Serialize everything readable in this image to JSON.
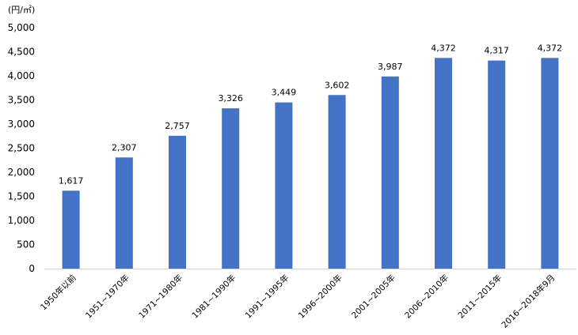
{
  "chart_data": {
    "type": "bar",
    "unit_label": "(円/㎡)",
    "categories": [
      "1950年以前",
      "1951~1970年",
      "1971~1980年",
      "1981~1990年",
      "1991~1995年",
      "1996~2000年",
      "2001~2005年",
      "2006~2010年",
      "2011~2015年",
      "2016~2018年9月"
    ],
    "values": [
      1617,
      2307,
      2757,
      3326,
      3449,
      3602,
      3987,
      4372,
      4317,
      4372
    ],
    "value_labels": [
      "1,617",
      "2,307",
      "2,757",
      "3,326",
      "3,449",
      "3,602",
      "3,987",
      "4,372",
      "4,317",
      "4,372"
    ],
    "ylim": [
      0,
      5000
    ],
    "yticks": [
      0,
      500,
      1000,
      1500,
      2000,
      2500,
      3000,
      3500,
      4000,
      4500,
      5000
    ],
    "ytick_labels": [
      "0",
      "500",
      "1,000",
      "1,500",
      "2,000",
      "2,500",
      "3,000",
      "3,500",
      "4,000",
      "4,500",
      "5,000"
    ],
    "grid": false,
    "legend": "none",
    "bar_color": "#4472C4",
    "axis_color": "#D9D9D9"
  }
}
